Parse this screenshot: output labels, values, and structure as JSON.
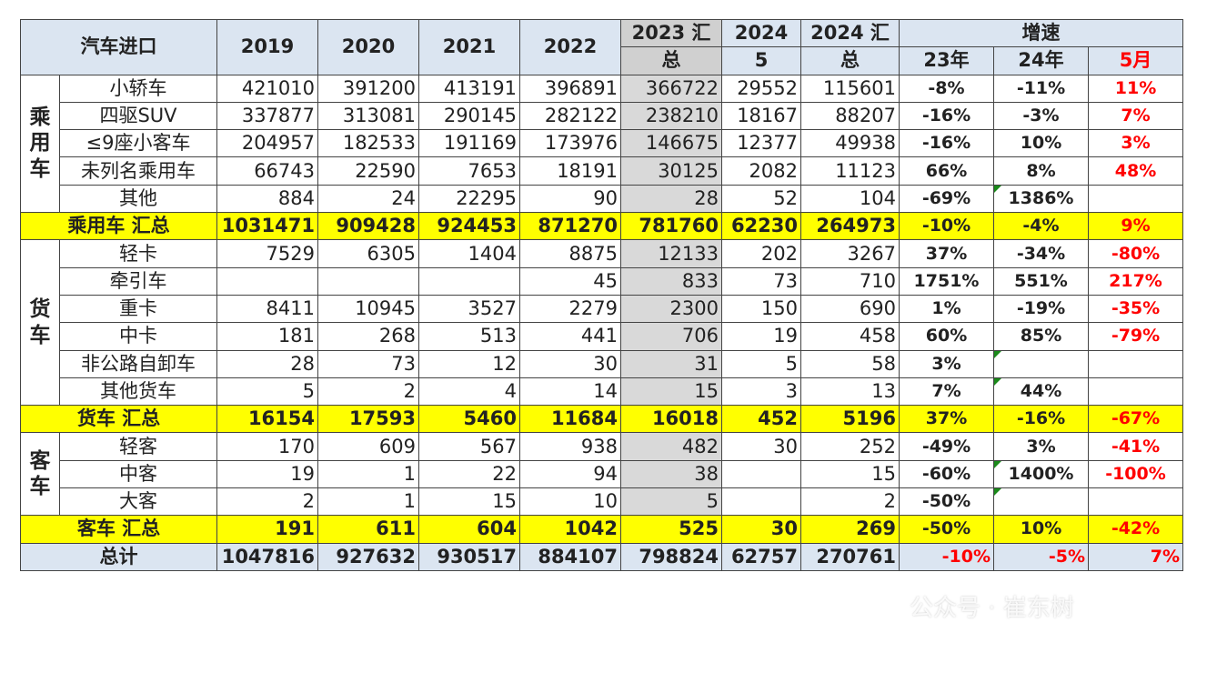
{
  "header": {
    "title": "汽车进口",
    "years": [
      "2019",
      "2020",
      "2021",
      "2022"
    ],
    "y2023_line1": "2023 汇",
    "y2023_line2": "总",
    "m2024_line1": "2024",
    "m2024_line2": "5",
    "y2024_line1": "2024 汇",
    "y2024_line2": "总",
    "growth": "增速",
    "growth_cols": [
      "23年",
      "24年",
      "5月"
    ]
  },
  "groups": [
    {
      "category": "乘用车",
      "rows": [
        {
          "label": "小轿车",
          "values": [
            "421010",
            "391200",
            "413191",
            "396891",
            "366722",
            "29552",
            "115601"
          ],
          "g23": "-8%",
          "g24": "-11%",
          "g5": "11%"
        },
        {
          "label": "四驱SUV",
          "values": [
            "337877",
            "313081",
            "290145",
            "282122",
            "238210",
            "18167",
            "88207"
          ],
          "g23": "-16%",
          "g24": "-3%",
          "g5": "7%"
        },
        {
          "label": "≤9座小客车",
          "values": [
            "204957",
            "182533",
            "191169",
            "173976",
            "146675",
            "12377",
            "49938"
          ],
          "g23": "-16%",
          "g24": "10%",
          "g5": "3%"
        },
        {
          "label": "未列名乘用车",
          "values": [
            "66743",
            "22590",
            "7653",
            "18191",
            "30125",
            "2082",
            "11123"
          ],
          "g23": "66%",
          "g24": "8%",
          "g5": "48%"
        },
        {
          "label": "其他",
          "values": [
            "884",
            "24",
            "22295",
            "90",
            "28",
            "52",
            "104"
          ],
          "g23": "-69%",
          "g24": "1386%",
          "g5": ""
        }
      ],
      "subtotal": {
        "label": "乘用车 汇总",
        "values": [
          "1031471",
          "909428",
          "924453",
          "871270",
          "781760",
          "62230",
          "264973"
        ],
        "g23": "-10%",
        "g24": "-4%",
        "g5": "9%"
      }
    },
    {
      "category": "货车",
      "rows": [
        {
          "label": "轻卡",
          "values": [
            "7529",
            "6305",
            "1404",
            "8875",
            "12133",
            "202",
            "3267"
          ],
          "g23": "37%",
          "g24": "-34%",
          "g5": "-80%"
        },
        {
          "label": "牵引车",
          "values": [
            "",
            "",
            "",
            "45",
            "833",
            "73",
            "710"
          ],
          "g23": "1751%",
          "g24": "551%",
          "g5": "217%"
        },
        {
          "label": "重卡",
          "values": [
            "8411",
            "10945",
            "3527",
            "2279",
            "2300",
            "150",
            "690"
          ],
          "g23": "1%",
          "g24": "-19%",
          "g5": "-35%"
        },
        {
          "label": "中卡",
          "values": [
            "181",
            "268",
            "513",
            "441",
            "706",
            "19",
            "458"
          ],
          "g23": "60%",
          "g24": "85%",
          "g5": "-79%"
        },
        {
          "label": "非公路自卸车",
          "values": [
            "28",
            "73",
            "12",
            "30",
            "31",
            "5",
            "58"
          ],
          "g23": "3%",
          "g24": "",
          "g5": ""
        },
        {
          "label": "其他货车",
          "values": [
            "5",
            "2",
            "4",
            "14",
            "15",
            "3",
            "13"
          ],
          "g23": "7%",
          "g24": "44%",
          "g5": ""
        }
      ],
      "subtotal": {
        "label": "货车 汇总",
        "values": [
          "16154",
          "17593",
          "5460",
          "11684",
          "16018",
          "452",
          "5196"
        ],
        "g23": "37%",
        "g24": "-16%",
        "g5": "-67%"
      }
    },
    {
      "category": "客车",
      "rows": [
        {
          "label": "轻客",
          "values": [
            "170",
            "609",
            "567",
            "938",
            "482",
            "30",
            "252"
          ],
          "g23": "-49%",
          "g24": "3%",
          "g5": "-41%"
        },
        {
          "label": "中客",
          "values": [
            "19",
            "1",
            "22",
            "94",
            "38",
            "",
            "15"
          ],
          "g23": "-60%",
          "g24": "1400%",
          "g5": "-100%"
        },
        {
          "label": "大客",
          "values": [
            "2",
            "1",
            "15",
            "10",
            "5",
            "",
            "2"
          ],
          "g23": "-50%",
          "g24": "",
          "g5": ""
        }
      ],
      "subtotal": {
        "label": "客车 汇总",
        "values": [
          "191",
          "611",
          "604",
          "1042",
          "525",
          "30",
          "269"
        ],
        "g23": "-50%",
        "g24": "10%",
        "g5": "-42%"
      }
    }
  ],
  "total": {
    "label": "总计",
    "values": [
      "1047816",
      "927632",
      "930517",
      "884107",
      "798824",
      "62757",
      "270761"
    ],
    "g23": "-10%",
    "g24": "-5%",
    "g5": "7%"
  },
  "watermark": "公众号 · 崔东树",
  "colors": {
    "header_bg": "#dbe5f1",
    "subtotal_bg": "#ffff00",
    "col2023_bg": "#d9d9d9",
    "negative_accent": "#ff0000"
  }
}
